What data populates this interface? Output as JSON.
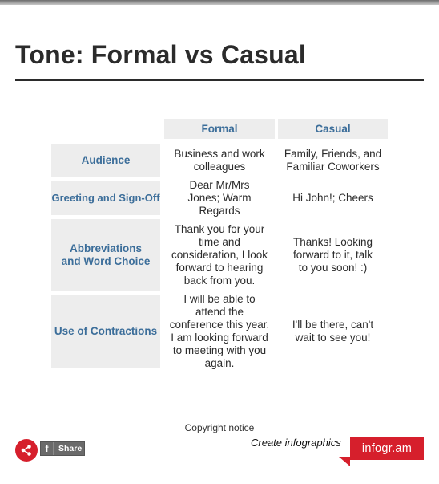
{
  "title": "Tone: Formal vs Casual",
  "table": {
    "columns": [
      "Formal",
      "Casual"
    ],
    "rows": [
      {
        "label": "Audience",
        "formal": "Business and work colleagues",
        "casual": "Family, Friends, and Familiar Coworkers"
      },
      {
        "label": "Greeting and Sign-Off",
        "formal": "Dear Mr/Mrs Jones; Warm Regards",
        "casual": "Hi John!; Cheers"
      },
      {
        "label": "Abbreviations and Word Choice",
        "formal": "Thank you for your time and consideration, I look forward to hearing back from you.",
        "casual": "Thanks! Looking forward to it, talk to you soon! :)"
      },
      {
        "label": "Use of Contractions",
        "formal": "I will be able to attend the conference this year. I am looking forward to meeting with you again.",
        "casual": "I'll be there, can't wait to see you!"
      }
    ]
  },
  "footer": {
    "copyright": "Copyright notice",
    "share_label": "Share",
    "fb_glyph": "f",
    "create_link": "Create infographics",
    "brand": "infogr.am"
  },
  "colors": {
    "accent": "#d61f2c",
    "header_text": "#3c6e9a",
    "cell_bg": "#ededed"
  },
  "icons": {
    "share": "share-icon",
    "facebook": "facebook-icon"
  }
}
